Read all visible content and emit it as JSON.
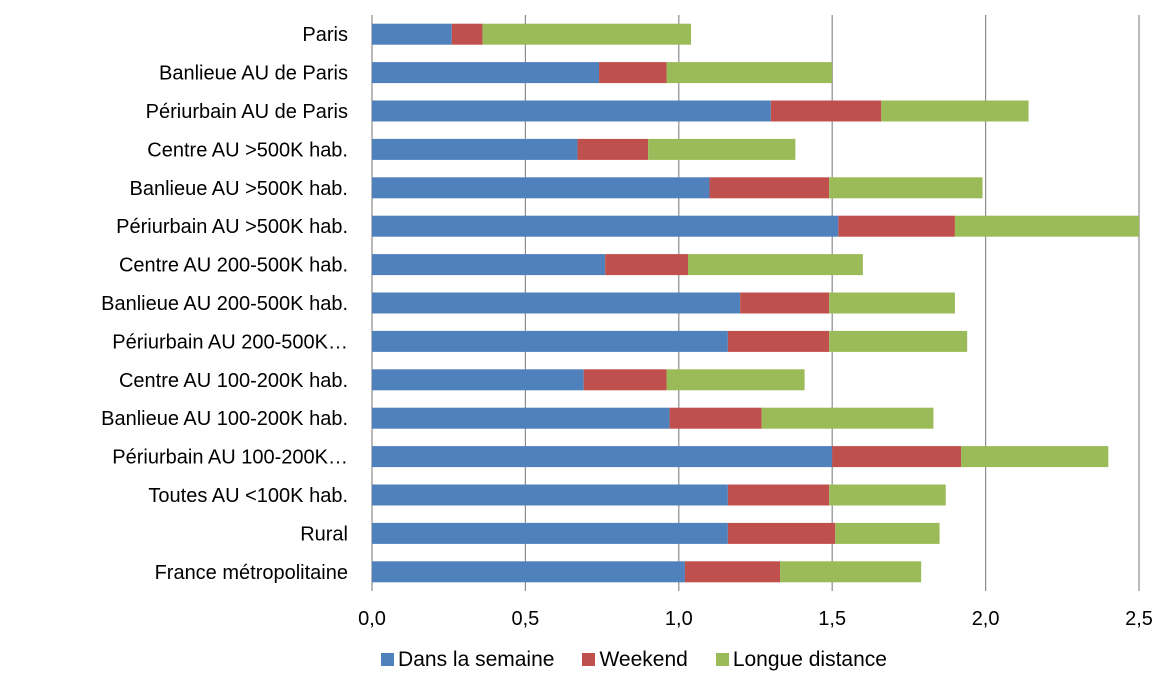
{
  "chart_data": {
    "type": "bar",
    "orientation": "horizontal",
    "stacked": true,
    "categories": [
      "Paris",
      "Banlieue AU de Paris",
      "Périurbain AU de Paris",
      "Centre AU >500K  hab.",
      "Banlieue AU >500K  hab.",
      "Périurbain  AU >500K hab.",
      "Centre AU 200-500K  hab.",
      "Banlieue AU 200-500K  hab.",
      "Périurbain  AU 200-500K…",
      "Centre AU 100-200K  hab.",
      "Banlieue AU 100-200K  hab.",
      "Périurbain  AU 100-200K…",
      "Toutes AU <100K hab.",
      "Rural",
      "France métropolitaine"
    ],
    "series": [
      {
        "name": "Dans la semaine",
        "color": "#4F81BD",
        "values": [
          0.26,
          0.74,
          1.3,
          0.67,
          1.1,
          1.52,
          0.76,
          1.2,
          1.16,
          0.69,
          0.97,
          1.5,
          1.16,
          1.16,
          1.02
        ]
      },
      {
        "name": "Weekend",
        "color": "#C0504D",
        "values": [
          0.1,
          0.22,
          0.36,
          0.23,
          0.39,
          0.38,
          0.27,
          0.29,
          0.33,
          0.27,
          0.3,
          0.42,
          0.33,
          0.35,
          0.31
        ]
      },
      {
        "name": "Longue distance",
        "color": "#9BBB59",
        "values": [
          0.68,
          0.54,
          0.48,
          0.48,
          0.5,
          0.6,
          0.57,
          0.41,
          0.45,
          0.45,
          0.56,
          0.48,
          0.38,
          0.34,
          0.46
        ]
      }
    ],
    "xlim": [
      0,
      2.5
    ],
    "x_ticks": [
      "0,0",
      "0,5",
      "1,0",
      "1,5",
      "2,0",
      "2,5"
    ],
    "grid": "vertical",
    "legend_position": "bottom"
  }
}
